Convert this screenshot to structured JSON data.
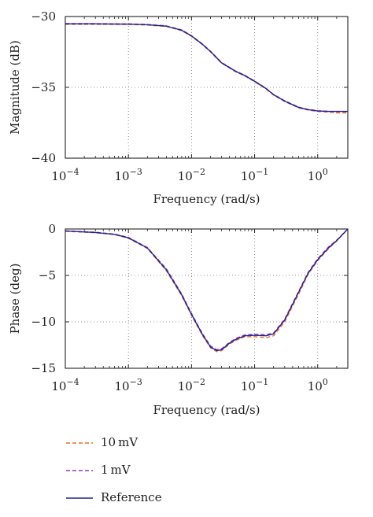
{
  "legend": {
    "items": [
      {
        "label": "10 mV",
        "color": "#e8702a",
        "style": "dashed"
      },
      {
        "label": "1 mV",
        "color": "#8b3fc0",
        "style": "dashed"
      },
      {
        "label": "Reference",
        "color": "#23238e",
        "style": "solid"
      }
    ]
  },
  "chart_data": [
    {
      "type": "line",
      "xlabel": "Frequency (rad/s)",
      "ylabel": "Magnitude (dB)",
      "xscale": "log",
      "xlim": [
        0.0001,
        3
      ],
      "ylim": [
        -40,
        -30
      ],
      "xticks": [
        0.0001,
        0.001,
        0.01,
        0.1,
        1
      ],
      "xtick_labels": [
        "10−4",
        "10−3",
        "10−2",
        "10−1",
        "100"
      ],
      "yticks": [
        -40,
        -35,
        -30
      ],
      "ytick_labels": [
        "−40",
        "−35",
        "−30"
      ],
      "grid": true,
      "series": [
        {
          "name": "10 mV",
          "x": [
            0.0001,
            0.0003,
            0.001,
            0.002,
            0.004,
            0.007,
            0.01,
            0.015,
            0.02,
            0.03,
            0.05,
            0.07,
            0.1,
            0.15,
            0.2,
            0.3,
            0.5,
            0.7,
            1,
            1.5,
            2,
            3
          ],
          "y": [
            -30.55,
            -30.55,
            -30.56,
            -30.6,
            -30.7,
            -31.0,
            -31.4,
            -32.0,
            -32.5,
            -33.3,
            -33.9,
            -34.2,
            -34.6,
            -35.1,
            -35.55,
            -36.0,
            -36.45,
            -36.6,
            -36.7,
            -36.75,
            -36.8,
            -36.8
          ]
        },
        {
          "name": "1 mV",
          "x": [
            0.0001,
            0.0003,
            0.001,
            0.002,
            0.004,
            0.007,
            0.01,
            0.015,
            0.02,
            0.03,
            0.05,
            0.07,
            0.1,
            0.15,
            0.2,
            0.3,
            0.5,
            0.7,
            1,
            1.5,
            2,
            3
          ],
          "y": [
            -30.5,
            -30.5,
            -30.52,
            -30.56,
            -30.66,
            -30.95,
            -31.35,
            -31.95,
            -32.45,
            -33.25,
            -33.85,
            -34.15,
            -34.55,
            -35.05,
            -35.5,
            -35.95,
            -36.4,
            -36.55,
            -36.65,
            -36.7,
            -36.72,
            -36.72
          ]
        },
        {
          "name": "Reference",
          "x": [
            0.0001,
            0.0003,
            0.001,
            0.002,
            0.004,
            0.007,
            0.01,
            0.015,
            0.02,
            0.03,
            0.05,
            0.07,
            0.1,
            0.15,
            0.2,
            0.3,
            0.5,
            0.7,
            1,
            1.5,
            2,
            3
          ],
          "y": [
            -30.52,
            -30.52,
            -30.54,
            -30.58,
            -30.68,
            -30.97,
            -31.37,
            -31.97,
            -32.47,
            -33.27,
            -33.87,
            -34.17,
            -34.57,
            -35.07,
            -35.52,
            -35.97,
            -36.42,
            -36.57,
            -36.67,
            -36.7,
            -36.7,
            -36.7
          ]
        }
      ]
    },
    {
      "type": "line",
      "xlabel": "Frequency (rad/s)",
      "ylabel": "Phase (deg)",
      "xscale": "log",
      "xlim": [
        0.0001,
        3
      ],
      "ylim": [
        -15,
        0
      ],
      "xticks": [
        0.0001,
        0.001,
        0.01,
        0.1,
        1
      ],
      "xtick_labels": [
        "10−4",
        "10−3",
        "10−2",
        "10−1",
        "100"
      ],
      "yticks": [
        -15,
        -10,
        -5,
        0
      ],
      "ytick_labels": [
        "−15",
        "−10",
        "−5",
        "0"
      ],
      "grid": true,
      "series": [
        {
          "name": "10 mV",
          "x": [
            0.0001,
            0.0003,
            0.0006,
            0.001,
            0.002,
            0.004,
            0.007,
            0.01,
            0.015,
            0.02,
            0.025,
            0.03,
            0.04,
            0.05,
            0.07,
            0.1,
            0.15,
            0.2,
            0.3,
            0.5,
            0.7,
            1,
            1.5,
            2,
            3
          ],
          "y": [
            -0.25,
            -0.4,
            -0.6,
            -1.0,
            -2.1,
            -4.5,
            -7.2,
            -9.3,
            -11.5,
            -12.8,
            -13.2,
            -13.1,
            -12.4,
            -12.0,
            -11.6,
            -11.6,
            -11.7,
            -11.5,
            -10.0,
            -7.0,
            -4.9,
            -3.4,
            -2.1,
            -1.3,
            0.0
          ]
        },
        {
          "name": "1 mV",
          "x": [
            0.0001,
            0.0003,
            0.0006,
            0.001,
            0.002,
            0.004,
            0.007,
            0.01,
            0.015,
            0.02,
            0.025,
            0.03,
            0.04,
            0.05,
            0.07,
            0.1,
            0.15,
            0.2,
            0.3,
            0.5,
            0.7,
            1,
            1.5,
            2,
            3
          ],
          "y": [
            -0.2,
            -0.35,
            -0.55,
            -0.9,
            -2.0,
            -4.3,
            -7.0,
            -9.1,
            -11.3,
            -12.6,
            -13.0,
            -12.9,
            -12.2,
            -11.8,
            -11.4,
            -11.35,
            -11.4,
            -11.2,
            -9.7,
            -6.7,
            -4.7,
            -3.2,
            -1.9,
            -1.2,
            0.0
          ]
        },
        {
          "name": "Reference",
          "x": [
            0.0001,
            0.0003,
            0.0006,
            0.001,
            0.002,
            0.004,
            0.007,
            0.01,
            0.015,
            0.02,
            0.025,
            0.03,
            0.04,
            0.05,
            0.07,
            0.1,
            0.15,
            0.2,
            0.3,
            0.5,
            0.7,
            1,
            1.5,
            2,
            3
          ],
          "y": [
            -0.22,
            -0.38,
            -0.58,
            -0.95,
            -2.05,
            -4.4,
            -7.1,
            -9.2,
            -11.4,
            -12.7,
            -13.1,
            -13.0,
            -12.3,
            -11.9,
            -11.5,
            -11.45,
            -11.5,
            -11.3,
            -9.8,
            -6.8,
            -4.8,
            -3.3,
            -2.0,
            -1.25,
            0.0
          ]
        }
      ]
    }
  ]
}
